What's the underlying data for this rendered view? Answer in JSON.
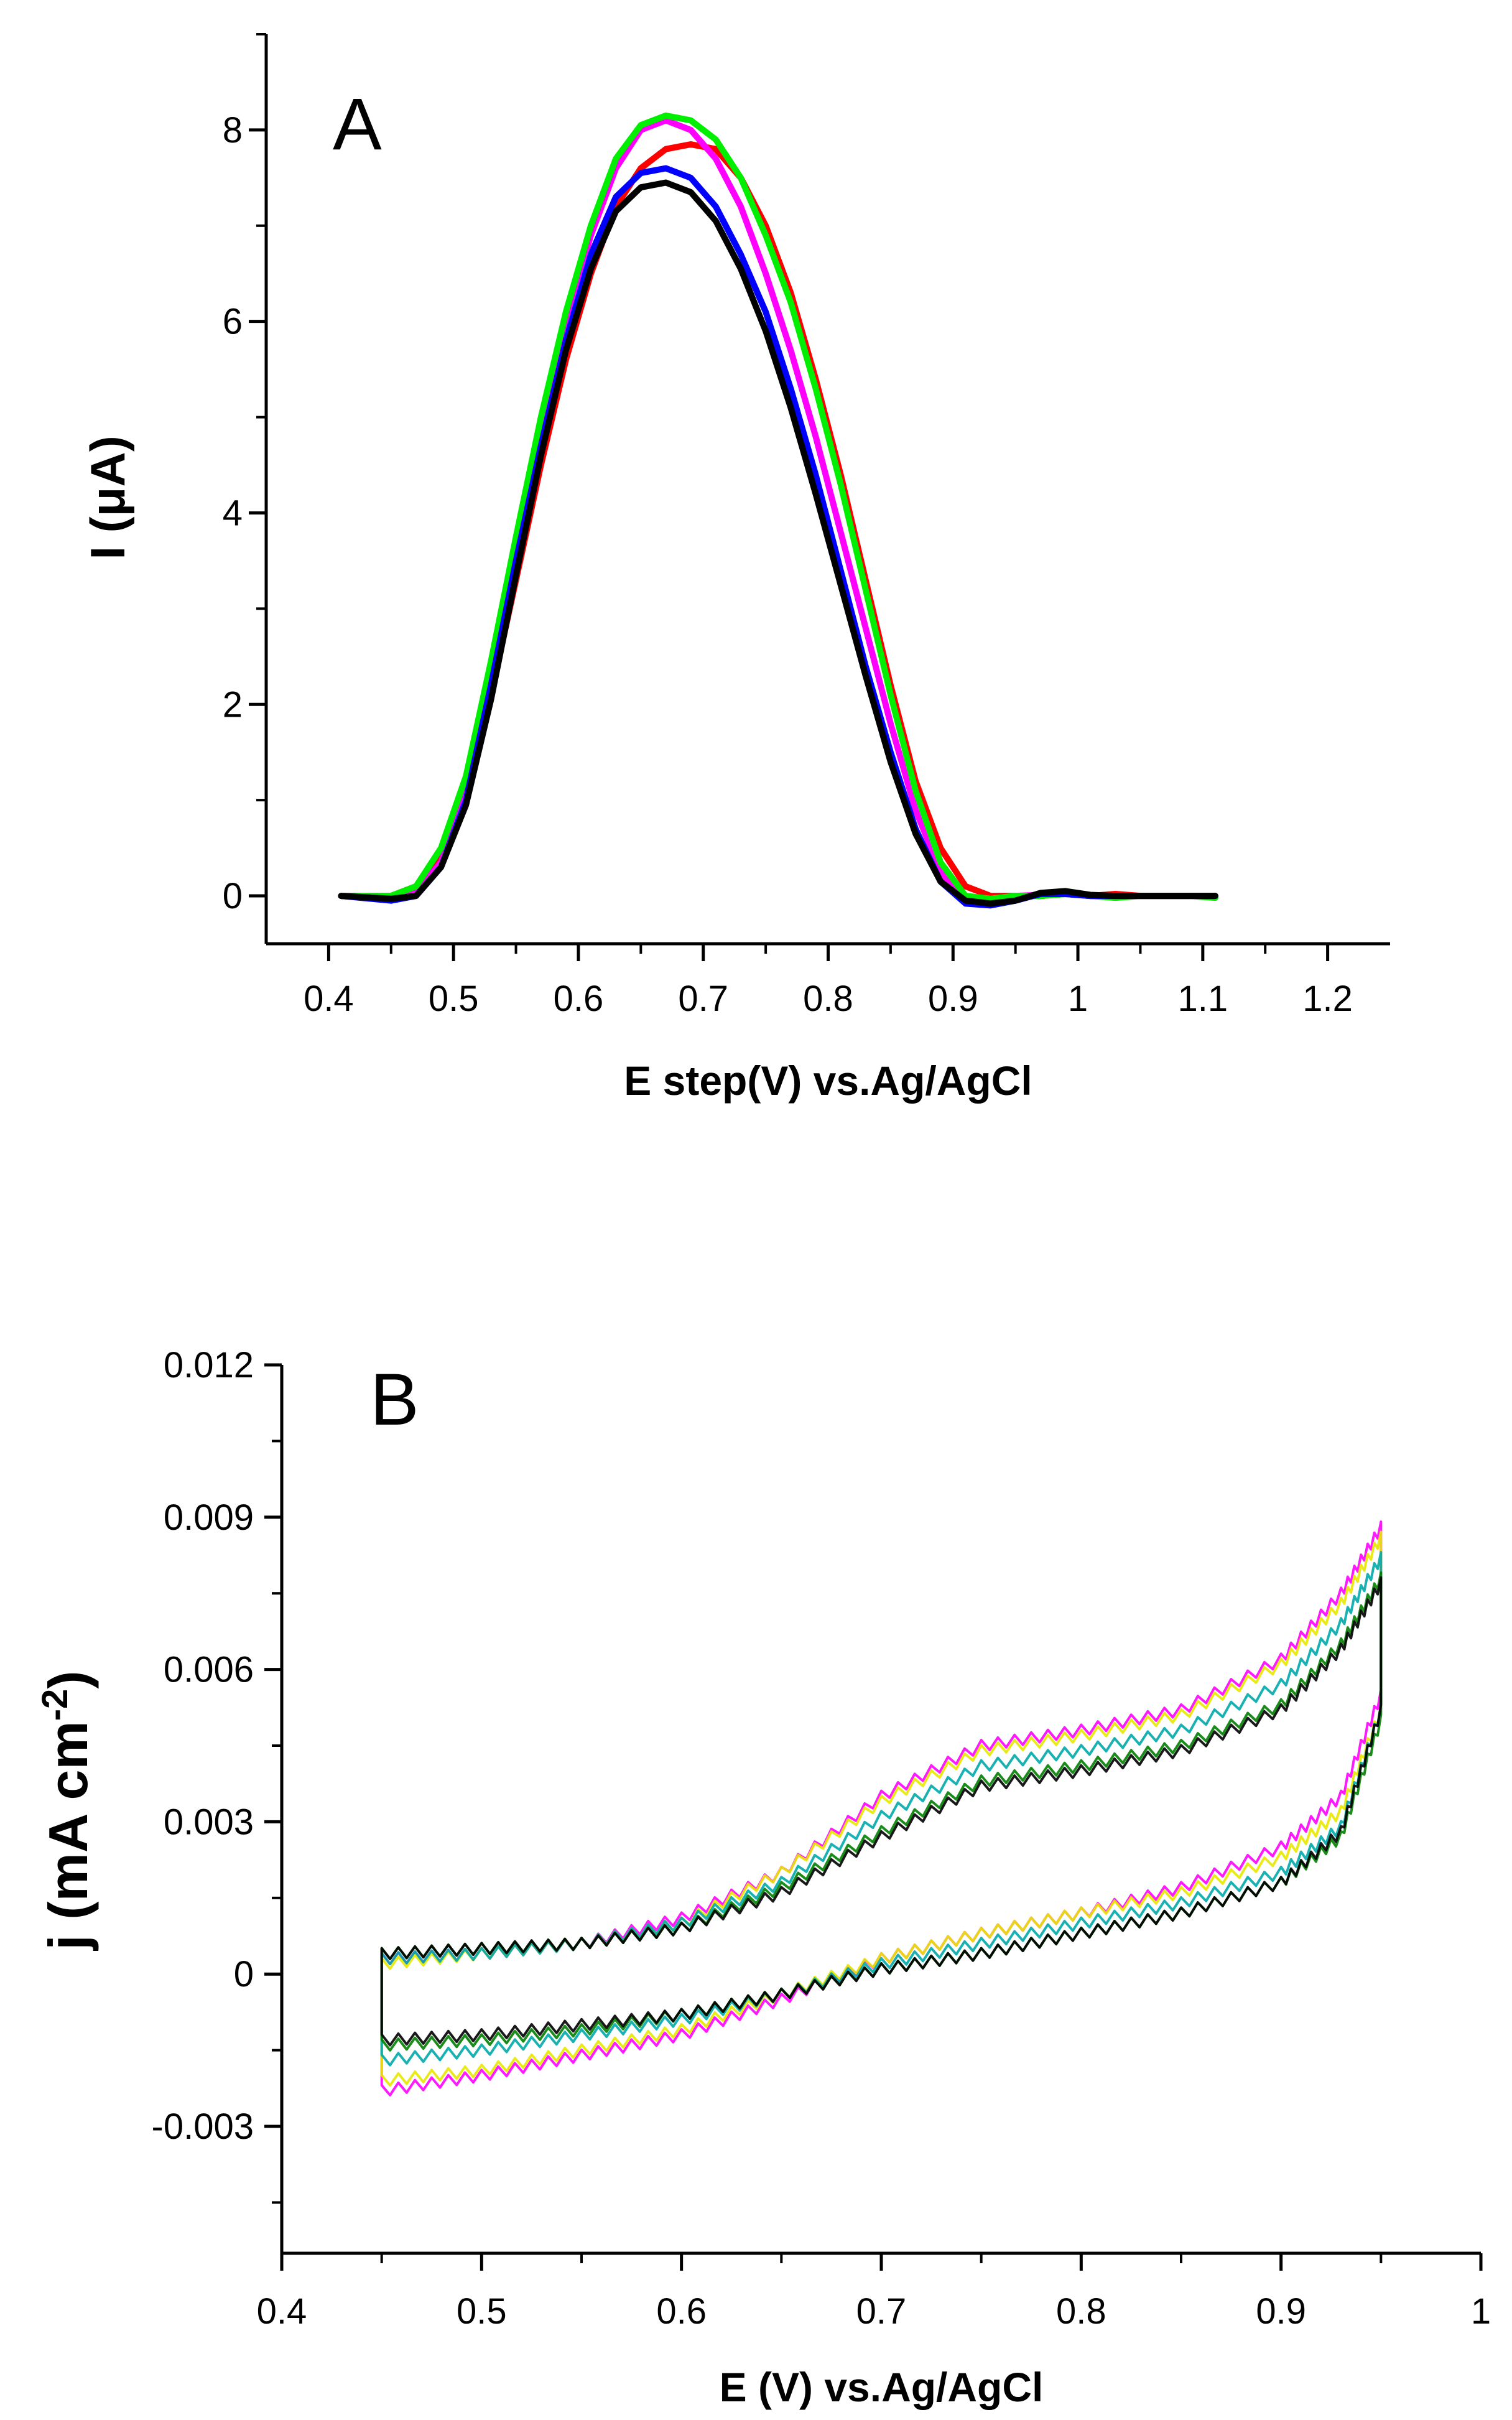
{
  "chart_data": [
    {
      "type": "line",
      "panel_label": "A",
      "xlabel": "E step(V) vs.Ag/AgCl",
      "ylabel": "I (μA)",
      "xlim": [
        0.35,
        1.25
      ],
      "ylim": [
        -0.5,
        9.0
      ],
      "xticks": [
        0.4,
        0.5,
        0.6,
        0.7,
        0.8,
        0.9,
        1.0,
        1.1,
        1.2
      ],
      "xtick_labels": [
        "0.4",
        "0.5",
        "0.6",
        "0.7",
        "0.8",
        "0.9",
        "1",
        "1.1",
        "1.2"
      ],
      "yticks": [
        0,
        2,
        4,
        6,
        8
      ],
      "ytick_labels": [
        "0",
        "2",
        "4",
        "6",
        "8"
      ],
      "grid": false,
      "legend": "none",
      "x": [
        0.41,
        0.45,
        0.47,
        0.49,
        0.51,
        0.53,
        0.55,
        0.57,
        0.59,
        0.61,
        0.63,
        0.65,
        0.67,
        0.69,
        0.71,
        0.73,
        0.75,
        0.77,
        0.79,
        0.81,
        0.83,
        0.85,
        0.87,
        0.89,
        0.91,
        0.93,
        0.95,
        0.97,
        0.99,
        1.01,
        1.03,
        1.05,
        1.07,
        1.09,
        1.11
      ],
      "series": [
        {
          "name": "red",
          "color": "#ff0000",
          "values": [
            0,
            0,
            0.1,
            0.4,
            1.1,
            2.1,
            3.3,
            4.5,
            5.6,
            6.5,
            7.2,
            7.6,
            7.8,
            7.85,
            7.8,
            7.5,
            7.0,
            6.3,
            5.4,
            4.4,
            3.3,
            2.2,
            1.2,
            0.5,
            0.1,
            0,
            0,
            0,
            0.02,
            0,
            0.02,
            0,
            0,
            0,
            0
          ]
        },
        {
          "name": "magenta",
          "color": "#ff00ff",
          "values": [
            0,
            -0.03,
            0.05,
            0.35,
            1.1,
            2.3,
            3.6,
            4.9,
            6.0,
            6.9,
            7.6,
            8.0,
            8.1,
            8.0,
            7.7,
            7.2,
            6.5,
            5.7,
            4.8,
            3.8,
            2.8,
            1.8,
            0.9,
            0.25,
            -0.05,
            -0.05,
            0,
            0.01,
            0.02,
            0,
            0,
            0,
            0,
            0,
            0
          ]
        },
        {
          "name": "green",
          "color": "#00ee00",
          "values": [
            0,
            0,
            0.1,
            0.5,
            1.25,
            2.45,
            3.75,
            5.0,
            6.1,
            7.0,
            7.7,
            8.05,
            8.15,
            8.1,
            7.9,
            7.5,
            6.9,
            6.2,
            5.3,
            4.3,
            3.2,
            2.1,
            1.1,
            0.35,
            0,
            -0.03,
            0,
            0,
            0.02,
            0,
            -0.02,
            0,
            0,
            0,
            -0.02
          ]
        },
        {
          "name": "blue",
          "color": "#0000ff",
          "values": [
            0,
            -0.05,
            0,
            0.3,
            1.0,
            2.2,
            3.5,
            4.7,
            5.8,
            6.7,
            7.3,
            7.55,
            7.6,
            7.5,
            7.2,
            6.7,
            6.1,
            5.3,
            4.4,
            3.4,
            2.4,
            1.5,
            0.7,
            0.15,
            -0.08,
            -0.1,
            -0.05,
            0.02,
            0.02,
            0,
            0,
            0,
            0,
            0,
            0
          ]
        },
        {
          "name": "black",
          "color": "#000000",
          "values": [
            0,
            -0.03,
            0,
            0.3,
            0.95,
            2.05,
            3.35,
            4.6,
            5.7,
            6.55,
            7.15,
            7.4,
            7.45,
            7.35,
            7.05,
            6.55,
            5.9,
            5.1,
            4.2,
            3.25,
            2.3,
            1.4,
            0.65,
            0.15,
            -0.05,
            -0.08,
            -0.05,
            0.03,
            0.05,
            0.01,
            0,
            0,
            0,
            0,
            0
          ]
        }
      ]
    },
    {
      "type": "line",
      "panel_label": "B",
      "xlabel": "E (V) vs.Ag/AgCl",
      "ylabel": "j (mA cm",
      "ylabel_superscript": "-2",
      "ylabel_close": ")",
      "xlim": [
        0.4,
        1.0
      ],
      "ylim": [
        -0.0055,
        0.012
      ],
      "xticks": [
        0.4,
        0.5,
        0.6,
        0.7,
        0.8,
        0.9,
        1.0
      ],
      "xtick_labels": [
        "0.4",
        "0.5",
        "0.6",
        "0.7",
        "0.8",
        "0.9",
        "1"
      ],
      "yticks": [
        -0.003,
        0,
        0.003,
        0.006,
        0.009,
        0.012
      ],
      "ytick_labels": [
        "-0.003",
        "0",
        "0.003",
        "0.006",
        "0.009",
        "0.012"
      ],
      "grid": false,
      "legend": "none",
      "x": [
        0.45,
        0.5,
        0.55,
        0.6,
        0.65,
        0.7,
        0.75,
        0.8,
        0.85,
        0.9,
        0.93,
        0.95
      ],
      "series": [
        {
          "name": "magenta",
          "color": "#ff00ff",
          "forward": [
            0.0003,
            0.0004,
            0.0006,
            0.0011,
            0.002,
            0.0035,
            0.0045,
            0.0048,
            0.0052,
            0.0062,
            0.0075,
            0.0088
          ],
          "reverse": [
            -0.0023,
            -0.002,
            -0.0016,
            -0.0012,
            -0.0005,
            0.0003,
            0.0008,
            0.0012,
            0.0017,
            0.0025,
            0.0035,
            0.0055
          ]
        },
        {
          "name": "yellow",
          "color": "#e8e800",
          "forward": [
            0.0002,
            0.0004,
            0.0006,
            0.001,
            0.002,
            0.0034,
            0.0044,
            0.0047,
            0.0051,
            0.0061,
            0.0073,
            0.0086
          ],
          "reverse": [
            -0.0021,
            -0.0019,
            -0.0015,
            -0.0011,
            -0.0004,
            0.0003,
            0.0008,
            0.0012,
            0.0016,
            0.0023,
            0.0032,
            0.0052
          ]
        },
        {
          "name": "cyan",
          "color": "#00a8a8",
          "forward": [
            0.0003,
            0.0004,
            0.0006,
            0.001,
            0.0018,
            0.0031,
            0.0041,
            0.0044,
            0.0048,
            0.0057,
            0.0069,
            0.0082
          ],
          "reverse": [
            -0.0017,
            -0.0015,
            -0.0012,
            -0.0009,
            -0.0004,
            0.0002,
            0.0006,
            0.001,
            0.0014,
            0.002,
            0.0029,
            0.0052
          ]
        },
        {
          "name": "darkgreen",
          "color": "#008000",
          "forward": [
            0.0004,
            0.0005,
            0.0006,
            0.0009,
            0.0017,
            0.0028,
            0.0038,
            0.0041,
            0.0045,
            0.0053,
            0.0065,
            0.0078
          ],
          "reverse": [
            -0.0014,
            -0.0013,
            -0.0011,
            -0.0008,
            -0.0004,
            0.0001,
            0.0004,
            0.0008,
            0.0012,
            0.0018,
            0.0027,
            0.005
          ]
        },
        {
          "name": "black",
          "color": "#000000",
          "forward": [
            0.0004,
            0.0005,
            0.0006,
            0.0009,
            0.0016,
            0.0027,
            0.0037,
            0.004,
            0.0044,
            0.0052,
            0.0064,
            0.0077
          ],
          "reverse": [
            -0.0013,
            -0.0012,
            -0.001,
            -0.0008,
            -0.0004,
            0.0001,
            0.0004,
            0.0008,
            0.0012,
            0.0018,
            0.0028,
            0.0052
          ]
        }
      ]
    }
  ]
}
